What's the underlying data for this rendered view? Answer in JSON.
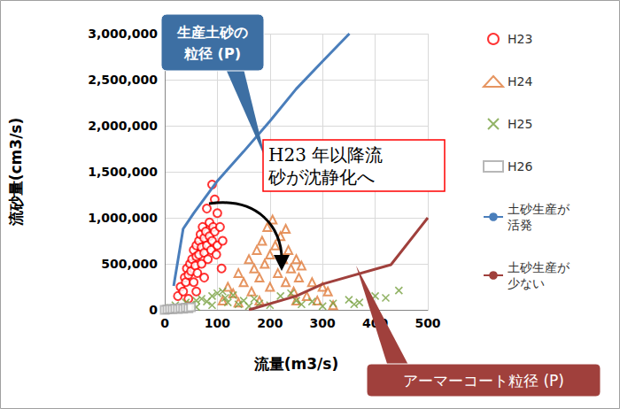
{
  "chart_data": {
    "type": "scatter",
    "x_label": "流量(m3/s)",
    "y_label": "流砂量(cm3/s)",
    "xlim": [
      0,
      500
    ],
    "ylim": [
      0,
      3000000
    ],
    "xticks": [
      0,
      100,
      200,
      300,
      400,
      500
    ],
    "yticks": [
      0,
      {
        "value": 500000,
        "label": "500,000"
      },
      {
        "value": 1000000,
        "label": "1,000,000"
      },
      {
        "value": 1500000,
        "label": "1,500,000"
      },
      {
        "value": 2000000,
        "label": "2,000,000"
      },
      {
        "value": 2500000,
        "label": "2,500,000"
      },
      {
        "value": 3000000,
        "label": "3,000,000"
      }
    ],
    "grid": true,
    "legend": "right",
    "annotations": [
      "生産土砂の\n粒径 (P)",
      "H23 年以降流\n砂が沈静化へ",
      "アーマーコート粒径 (P)"
    ],
    "series": [
      {
        "name": "H23",
        "type": "scatter",
        "marker": "circle",
        "color": "#ff0000",
        "x": [
          25,
          30,
          35,
          38,
          40,
          42,
          45,
          48,
          50,
          52,
          55,
          55,
          58,
          60,
          60,
          62,
          65,
          65,
          68,
          70,
          70,
          72,
          75,
          75,
          78,
          80,
          80,
          82,
          85,
          85,
          88,
          90,
          90,
          92,
          95,
          95,
          98,
          100,
          100,
          105,
          108,
          110,
          60,
          45,
          75
        ],
        "values": [
          150000,
          250000,
          200000,
          350000,
          300000,
          450000,
          380000,
          500000,
          420000,
          550000,
          300000,
          650000,
          480000,
          700000,
          580000,
          400000,
          750000,
          600000,
          820000,
          500000,
          680000,
          900000,
          620000,
          780000,
          850000,
          1100000,
          700000,
          550000,
          950000,
          800000,
          650000,
          1360000,
          750000,
          900000,
          1200000,
          850000,
          600000,
          1050000,
          700000,
          900000,
          450000,
          750000,
          200000,
          120000,
          350000
        ]
      },
      {
        "name": "H24",
        "type": "scatter",
        "marker": "triangle",
        "color": "#e07b39",
        "x": [
          110,
          120,
          130,
          140,
          150,
          160,
          165,
          170,
          175,
          180,
          185,
          190,
          195,
          200,
          200,
          205,
          210,
          215,
          220,
          225,
          230,
          235,
          240,
          245,
          250,
          255,
          260,
          270,
          280,
          290,
          300,
          310,
          320,
          180,
          140,
          250,
          230
        ],
        "values": [
          100000,
          250000,
          180000,
          400000,
          300000,
          550000,
          200000,
          450000,
          650000,
          350000,
          750000,
          500000,
          900000,
          600000,
          250000,
          980000,
          700000,
          400000,
          800000,
          550000,
          300000,
          650000,
          450000,
          200000,
          550000,
          350000,
          480000,
          150000,
          300000,
          100000,
          250000,
          200000,
          50000,
          100000,
          80000,
          100000,
          880000
        ]
      },
      {
        "name": "H25",
        "type": "scatter",
        "marker": "x",
        "color": "#77a040",
        "x": [
          10,
          20,
          30,
          40,
          50,
          60,
          70,
          80,
          90,
          100,
          110,
          115,
          120,
          130,
          140,
          150,
          160,
          170,
          180,
          200,
          220,
          240,
          250,
          260,
          280,
          300,
          320,
          350,
          360,
          370,
          400,
          420,
          445,
          90,
          60
        ],
        "values": [
          20000,
          50000,
          30000,
          80000,
          60000,
          100000,
          120000,
          90000,
          150000,
          180000,
          200000,
          130000,
          80000,
          160000,
          60000,
          100000,
          40000,
          120000,
          70000,
          50000,
          150000,
          180000,
          100000,
          60000,
          90000,
          40000,
          70000,
          110000,
          60000,
          80000,
          150000,
          130000,
          210000,
          50000,
          30000
        ]
      },
      {
        "name": "H26",
        "type": "scatter",
        "marker": "square",
        "color": "#a6a6a6",
        "x": [
          0,
          5,
          10,
          15,
          20,
          25,
          30,
          35,
          40,
          45,
          50
        ],
        "values": [
          0,
          5000,
          10000,
          8000,
          15000,
          10000,
          20000,
          12000,
          25000,
          18000,
          30000
        ]
      },
      {
        "name": "土砂生産が活発",
        "type": "line",
        "color": "#4a7ebb",
        "x": [
          17,
          35,
          55,
          100,
          150,
          200,
          250,
          300,
          351
        ],
        "values": [
          260000,
          880000,
          1050000,
          1400000,
          1720000,
          2050000,
          2400000,
          2700000,
          3000000
        ]
      },
      {
        "name": "土砂生産が少ない",
        "type": "line",
        "color": "#a0403c",
        "x": [
          160,
          250,
          300,
          430,
          500
        ],
        "values": [
          0,
          150000,
          280000,
          490000,
          1000000
        ]
      }
    ]
  }
}
